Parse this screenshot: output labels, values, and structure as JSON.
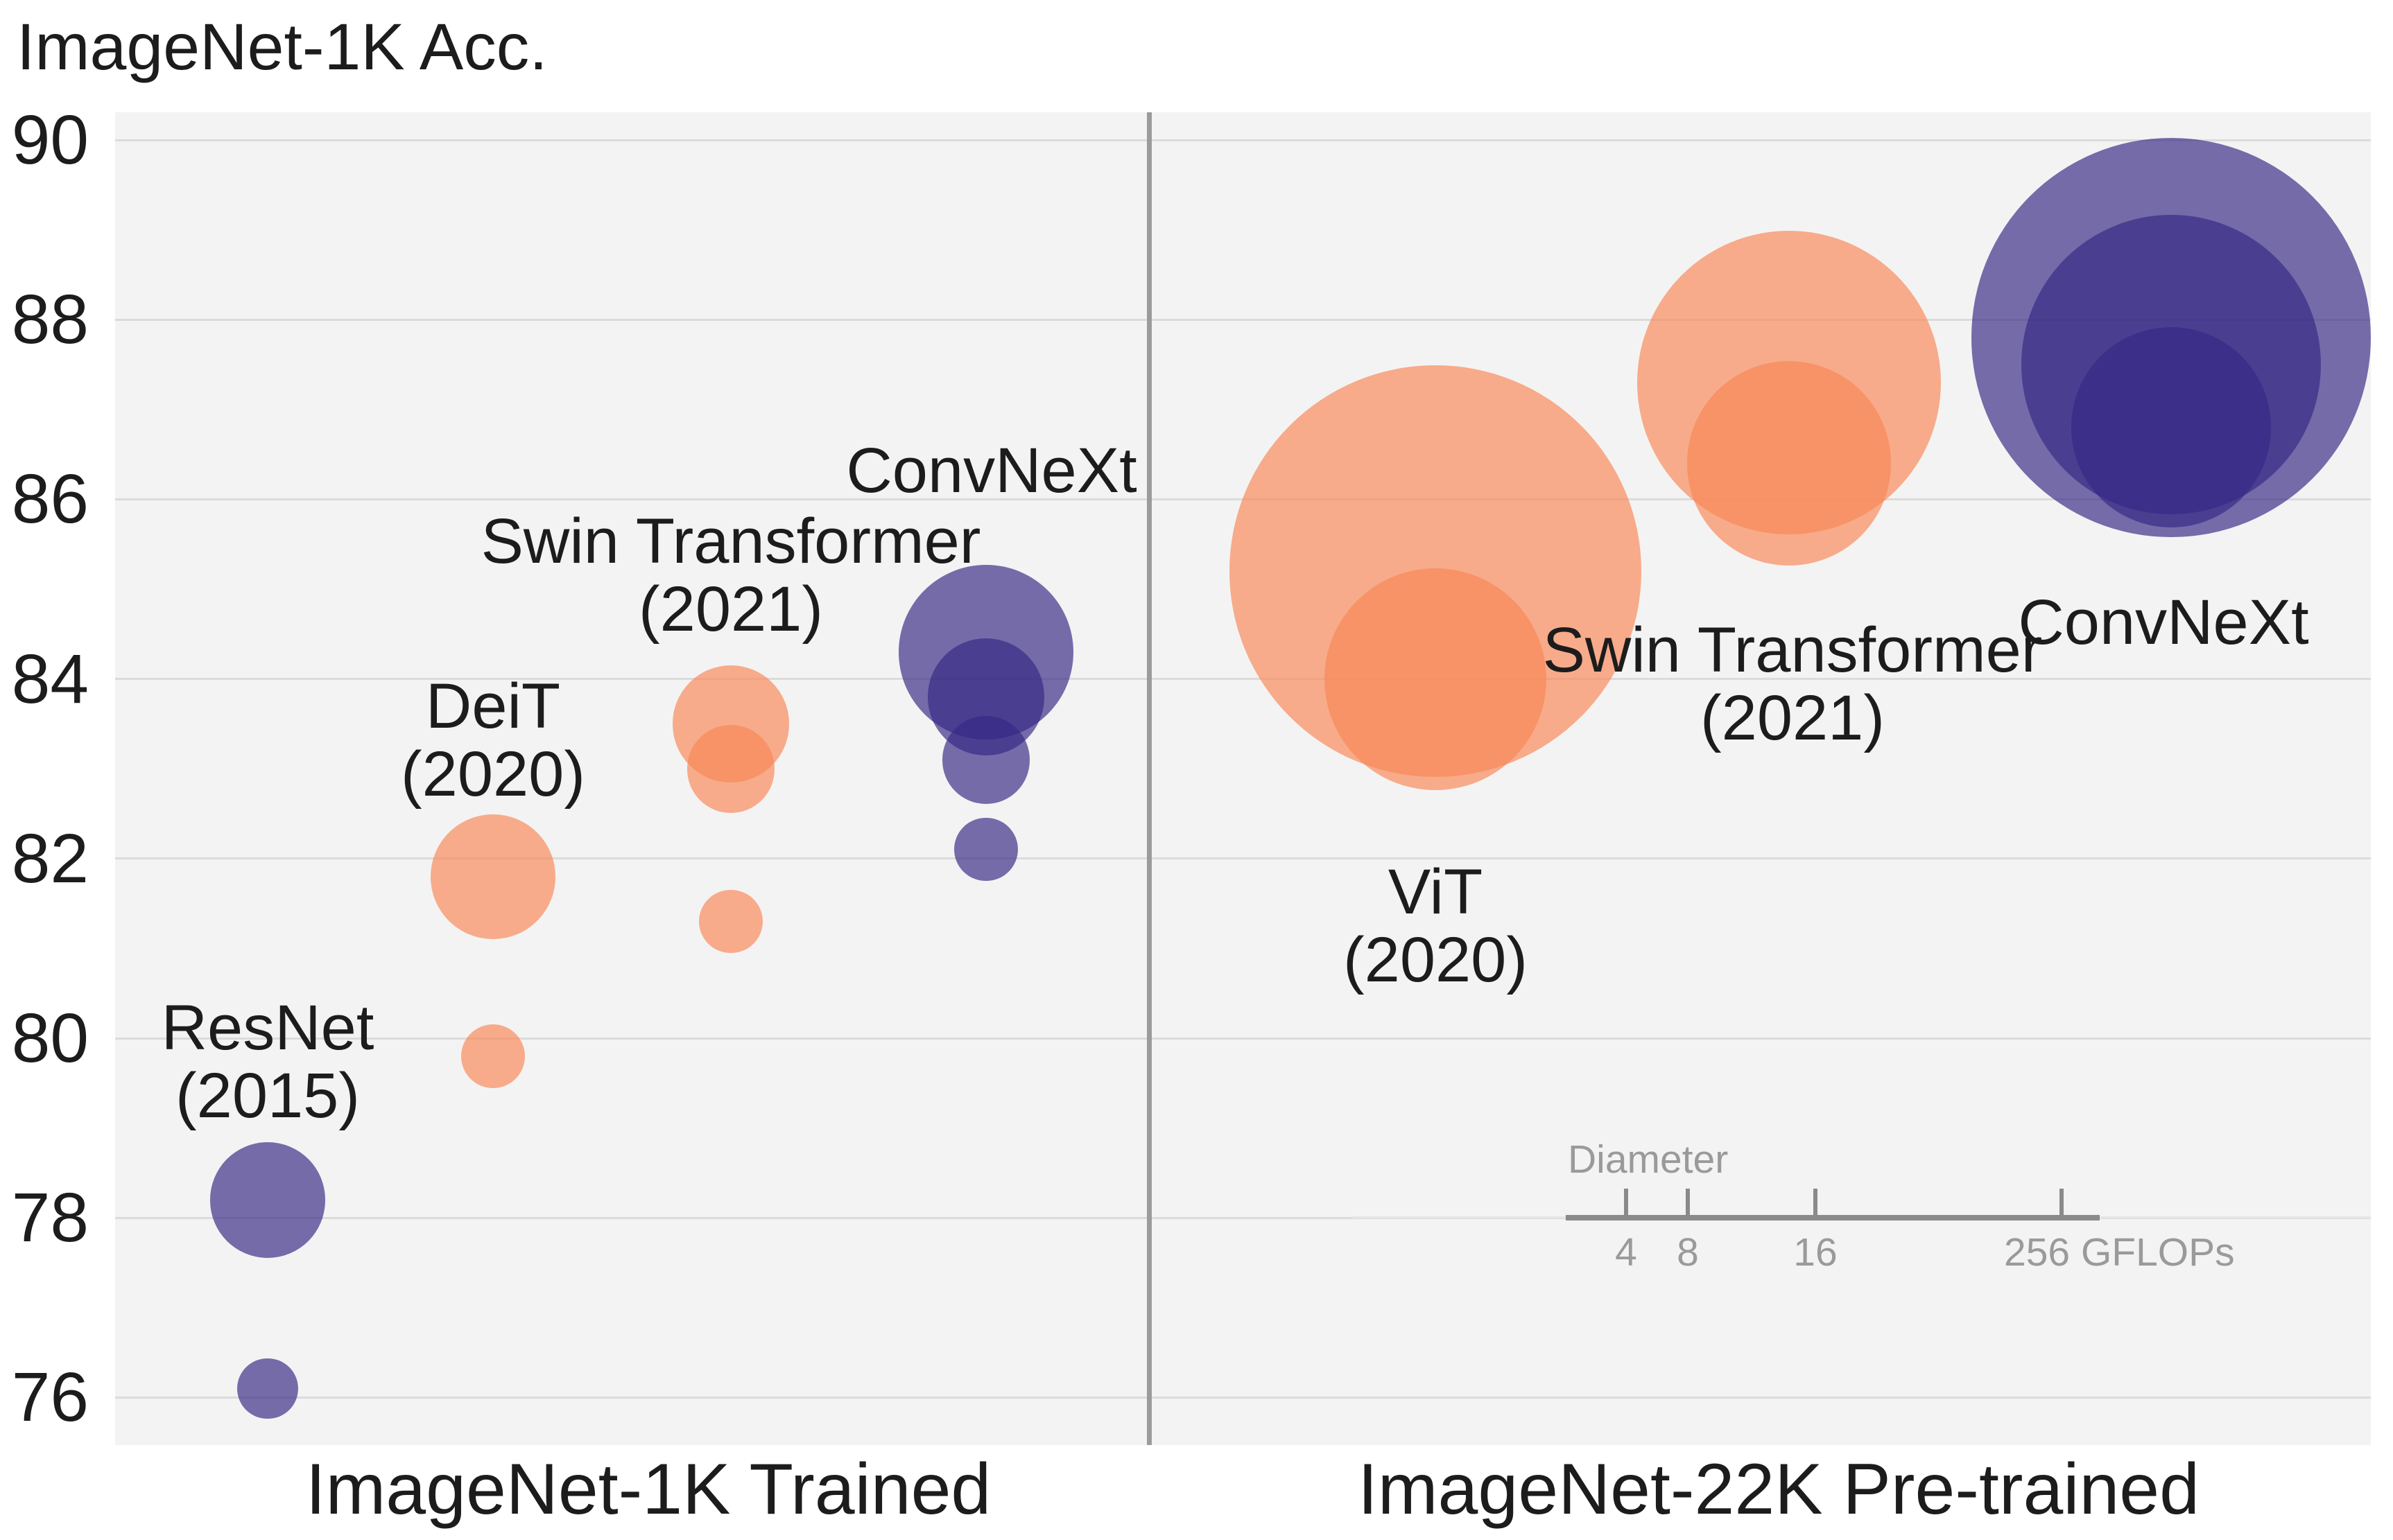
{
  "title": "ImageNet-1K Acc.",
  "colors": {
    "orange": "#F88756",
    "purple": "#352884",
    "bubble_alpha": 0.67,
    "plot_bg": "#F4F3F3",
    "gridline": "#DBDBDB",
    "divider": "#9B9B9B",
    "text": "#1C1C1C",
    "legend_text": "#9A9A9A"
  },
  "y_axis": {
    "label": "ImageNet-1K Acc.",
    "tick_values": [
      90,
      88,
      86,
      84,
      82,
      80,
      78,
      76
    ]
  },
  "chart_data": {
    "type": "scatter",
    "subtype": "bubble",
    "title": "ImageNet-1K Acc.",
    "ylabel": "ImageNet-1K Acc.",
    "ylim": [
      75.4,
      90.3
    ],
    "grid": "horizontal",
    "size_encoding": "bubble diameter proportional to sqrt(GFLOPs)",
    "panels": [
      {
        "label": "ImageNet-1K Trained",
        "groups": [
          {
            "name": "ResNet",
            "label_lines": [
              "ResNet",
              "(2015)"
            ],
            "color": "purple",
            "points": [
              {
                "acc": 78.2,
                "gflops": 15.0
              },
              {
                "acc": 76.1,
                "gflops": 4.1
              }
            ]
          },
          {
            "name": "DeiT",
            "label_lines": [
              "DeiT",
              "(2020)"
            ],
            "color": "orange",
            "points": [
              {
                "acc": 81.8,
                "gflops": 17.5
              },
              {
                "acc": 79.8,
                "gflops": 4.6
              }
            ]
          },
          {
            "name": "Swin Transformer",
            "label_lines": [
              "Swin Transformer",
              "(2021)"
            ],
            "color": "orange",
            "points": [
              {
                "acc": 83.5,
                "gflops": 15.4
              },
              {
                "acc": 83.0,
                "gflops": 8.7
              },
              {
                "acc": 81.3,
                "gflops": 4.5
              }
            ]
          },
          {
            "name": "ConvNeXt",
            "label_lines": [
              "ConvNeXt"
            ],
            "color": "purple",
            "points": [
              {
                "acc": 84.3,
                "gflops": 34.4
              },
              {
                "acc": 83.8,
                "gflops": 15.4
              },
              {
                "acc": 83.1,
                "gflops": 8.7
              },
              {
                "acc": 82.1,
                "gflops": 4.5
              }
            ]
          }
        ]
      },
      {
        "label": "ImageNet-22K Pre-trained",
        "groups": [
          {
            "name": "ViT",
            "label_lines": [
              "ViT",
              "(2020)"
            ],
            "color": "orange",
            "points": [
              {
                "acc": 85.2,
                "gflops": 190.7
              },
              {
                "acc": 84.0,
                "gflops": 55.4
              }
            ]
          },
          {
            "name": "Swin Transformer",
            "label_lines": [
              "Swin Transformer",
              "(2021)"
            ],
            "color": "orange",
            "points": [
              {
                "acc": 87.3,
                "gflops": 103.9
              },
              {
                "acc": 86.4,
                "gflops": 47.0
              }
            ]
          },
          {
            "name": "ConvNeXt",
            "label_lines": [
              "ConvNeXt"
            ],
            "color": "purple",
            "points": [
              {
                "acc": 87.8,
                "gflops": 179.0
              },
              {
                "acc": 87.5,
                "gflops": 101.0
              },
              {
                "acc": 86.8,
                "gflops": 45.0
              }
            ]
          }
        ]
      }
    ],
    "legend": {
      "title": "Diameter",
      "tick_labels": [
        "4",
        "8",
        "16",
        "256"
      ],
      "unit": "GFLOPs"
    }
  }
}
